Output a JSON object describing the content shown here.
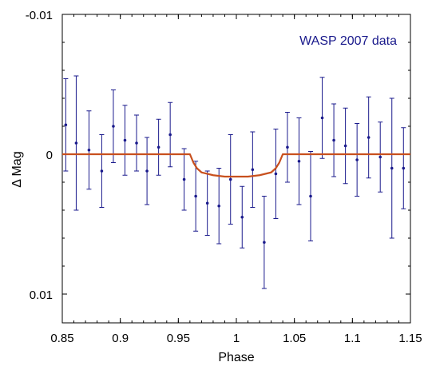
{
  "chart_data": {
    "type": "scatter",
    "title": "",
    "xlabel": "Phase",
    "ylabel": "Δ Mag",
    "annotation": "WASP 2007 data",
    "xlim": [
      0.85,
      1.15
    ],
    "ylim": [
      -0.01,
      0.012
    ],
    "y_inverted": true,
    "grid": false,
    "x_ticks": [
      0.85,
      0.9,
      0.95,
      1.0,
      1.05,
      1.1,
      1.15
    ],
    "x_tick_labels": [
      "0.85",
      "0.9",
      "0.95",
      "1",
      "1.05",
      "1.1",
      "1.15"
    ],
    "y_ticks": [
      -0.01,
      0.0,
      0.01
    ],
    "y_tick_labels": [
      "-0.01",
      "0",
      "0.01"
    ],
    "colors": {
      "points": "#1a1a8c",
      "model": "#c8501e",
      "axes": "#000000",
      "annotation": "#1a1a8c"
    },
    "series": [
      {
        "type": "errorbar",
        "points": [
          {
            "x": 0.853,
            "y": -0.0021,
            "err": 0.0033
          },
          {
            "x": 0.862,
            "y": -0.0008,
            "err": 0.0048
          },
          {
            "x": 0.873,
            "y": -0.0003,
            "err": 0.0028
          },
          {
            "x": 0.884,
            "y": 0.0012,
            "err": 0.0026
          },
          {
            "x": 0.894,
            "y": -0.002,
            "err": 0.0026
          },
          {
            "x": 0.904,
            "y": -0.001,
            "err": 0.0025
          },
          {
            "x": 0.914,
            "y": -0.0008,
            "err": 0.002
          },
          {
            "x": 0.923,
            "y": 0.0012,
            "err": 0.0024
          },
          {
            "x": 0.933,
            "y": -0.0005,
            "err": 0.002
          },
          {
            "x": 0.943,
            "y": -0.0014,
            "err": 0.0023
          },
          {
            "x": 0.955,
            "y": 0.0018,
            "err": 0.0022
          },
          {
            "x": 0.965,
            "y": 0.003,
            "err": 0.0025
          },
          {
            "x": 0.975,
            "y": 0.0035,
            "err": 0.0023
          },
          {
            "x": 0.985,
            "y": 0.0037,
            "err": 0.0027
          },
          {
            "x": 0.995,
            "y": 0.0018,
            "err": 0.0032
          },
          {
            "x": 1.005,
            "y": 0.0045,
            "err": 0.0022
          },
          {
            "x": 1.014,
            "y": 0.0011,
            "err": 0.0027
          },
          {
            "x": 1.024,
            "y": 0.0063,
            "err": 0.0033
          },
          {
            "x": 1.034,
            "y": 0.0014,
            "err": 0.0032
          },
          {
            "x": 1.044,
            "y": -0.0005,
            "err": 0.0025
          },
          {
            "x": 1.054,
            "y": 0.0005,
            "err": 0.0031
          },
          {
            "x": 1.064,
            "y": 0.003,
            "err": 0.0032
          },
          {
            "x": 1.074,
            "y": -0.0026,
            "err": 0.0029
          },
          {
            "x": 1.084,
            "y": -0.001,
            "err": 0.0026
          },
          {
            "x": 1.094,
            "y": -0.0006,
            "err": 0.0027
          },
          {
            "x": 1.104,
            "y": 0.0004,
            "err": 0.0026
          },
          {
            "x": 1.114,
            "y": -0.0012,
            "err": 0.0029
          },
          {
            "x": 1.124,
            "y": 0.0002,
            "err": 0.0025
          },
          {
            "x": 1.134,
            "y": 0.001,
            "err": 0.005
          },
          {
            "x": 1.144,
            "y": 0.001,
            "err": 0.0029
          }
        ]
      },
      {
        "type": "line",
        "points": [
          {
            "x": 0.85,
            "y": 0.0
          },
          {
            "x": 0.96,
            "y": 0.0
          },
          {
            "x": 0.963,
            "y": 0.0006
          },
          {
            "x": 0.966,
            "y": 0.001
          },
          {
            "x": 0.97,
            "y": 0.0013
          },
          {
            "x": 0.98,
            "y": 0.0015
          },
          {
            "x": 0.99,
            "y": 0.0016
          },
          {
            "x": 1.0,
            "y": 0.0016
          },
          {
            "x": 1.01,
            "y": 0.0016
          },
          {
            "x": 1.02,
            "y": 0.0015
          },
          {
            "x": 1.03,
            "y": 0.0013
          },
          {
            "x": 1.034,
            "y": 0.001
          },
          {
            "x": 1.037,
            "y": 0.0006
          },
          {
            "x": 1.04,
            "y": 0.0
          },
          {
            "x": 1.15,
            "y": 0.0
          }
        ]
      }
    ]
  }
}
